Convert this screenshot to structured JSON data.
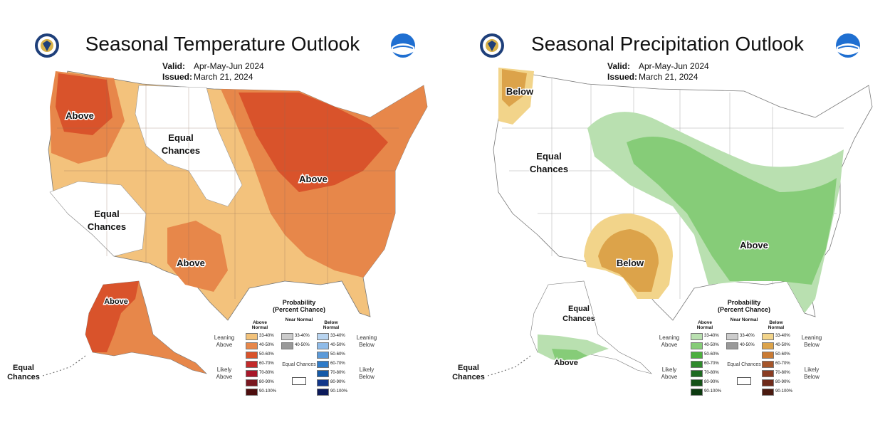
{
  "temperature": {
    "title": "Seasonal Temperature Outlook",
    "valid_label": "Valid:",
    "valid_value": "Apr-May-Jun 2024",
    "issued_label": "Issued:",
    "issued_value": "March 21, 2024",
    "labels": {
      "above_pnw": "Above",
      "equal_rockies_1": "Equal",
      "equal_rockies_2": "Chances",
      "equal_cal_1": "Equal",
      "equal_cal_2": "Chances",
      "above_great_lakes": "Above",
      "above_texas": "Above",
      "above_alaska": "Above",
      "equal_aleutians_1": "Equal",
      "equal_aleutians_2": "Chances"
    }
  },
  "precipitation": {
    "title": "Seasonal Precipitation Outlook",
    "valid_label": "Valid:",
    "valid_value": "Apr-May-Jun 2024",
    "issued_label": "Issued:",
    "issued_value": "March 21, 2024",
    "labels": {
      "below_wa": "Below",
      "equal_west_1": "Equal",
      "equal_west_2": "Chances",
      "below_texas": "Below",
      "above_southeast": "Above",
      "equal_ak_1": "Equal",
      "equal_ak_2": "Chances",
      "above_ak": "Above",
      "equal_aleutians_1": "Equal",
      "equal_aleutians_2": "Chances"
    }
  },
  "legend": {
    "title_1": "Probability",
    "title_2": "(Percent Chance)",
    "col_above": "Above Normal",
    "col_near": "Near Normal",
    "col_below": "Below Normal",
    "leaning_above": "Leaning Above",
    "likely_above": "Likely Above",
    "leaning_below": "Leaning Below",
    "likely_below": "Likely Below",
    "equal_chances": "Equal Chances",
    "ranges": [
      "33-40%",
      "40-50%",
      "50-60%",
      "60-70%",
      "70-80%",
      "80-90%",
      "90-100%"
    ],
    "near_ranges": [
      "33-40%",
      "40-50%"
    ],
    "colors": {
      "temp_above": [
        "#f2c27a",
        "#e7874a",
        "#d9532b",
        "#c32a2a",
        "#a8182a",
        "#7a1820",
        "#4d0e0e"
      ],
      "temp_below": [
        "#b8d4f0",
        "#8fbbe8",
        "#5c9ad8",
        "#2f7bc8",
        "#155aa8",
        "#12378a",
        "#0c1a5a"
      ],
      "precip_above": [
        "#b9e0b0",
        "#86cc78",
        "#4caf3e",
        "#2f8a2c",
        "#1e6a22",
        "#155218",
        "#0c3a10"
      ],
      "precip_below": [
        "#f2d48a",
        "#dca34a",
        "#c97a33",
        "#a5552a",
        "#8a3c22",
        "#6e2a1a",
        "#4a1a10"
      ],
      "near": [
        "#cccccc",
        "#999999"
      ]
    }
  }
}
